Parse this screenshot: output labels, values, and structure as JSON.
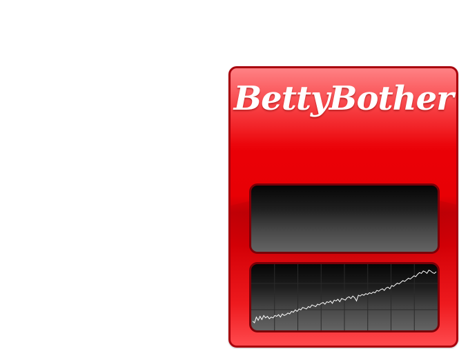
{
  "widget": {
    "logo_text": "BettyBother",
    "colors": {
      "body": "#e80005",
      "border": "#a8000c",
      "panel_dark": "#050505",
      "panel_light": "#646464",
      "line": "#ffffff"
    }
  },
  "display": {
    "text": ""
  },
  "chart_data": {
    "type": "line",
    "title": "",
    "xlabel": "",
    "ylabel": "",
    "grid": true,
    "x": [
      0,
      1,
      2,
      3,
      4,
      5,
      6,
      7,
      8,
      9,
      10,
      11,
      12,
      13,
      14,
      15,
      16,
      17,
      18,
      19,
      20,
      21,
      22,
      23,
      24,
      25,
      26,
      27,
      28,
      29,
      30,
      31,
      32,
      33,
      34,
      35,
      36,
      37,
      38,
      39,
      40,
      41,
      42,
      43,
      44,
      45,
      46,
      47,
      48,
      49,
      50,
      51,
      52,
      53,
      54,
      55,
      56,
      57,
      58,
      59,
      60,
      61,
      62,
      63,
      64,
      65,
      66,
      67,
      68,
      69,
      70,
      71,
      72,
      73,
      74,
      75,
      76,
      77,
      78,
      79,
      80,
      81,
      82,
      83,
      84,
      85,
      86,
      87,
      88,
      89,
      90,
      91,
      92,
      93,
      94,
      95,
      96,
      97,
      98,
      99
    ],
    "series": [
      {
        "values": [
          8,
          6,
          13,
          9,
          14,
          10,
          15,
          12,
          14,
          11,
          13,
          12,
          15,
          14,
          16,
          13,
          17,
          15,
          16,
          18,
          17,
          20,
          19,
          22,
          20,
          23,
          22,
          25,
          24,
          23,
          26,
          25,
          28,
          27,
          26,
          29,
          28,
          30,
          31,
          29,
          32,
          31,
          33,
          30,
          34,
          33,
          35,
          32,
          36,
          35,
          34,
          37,
          38,
          36,
          39,
          37,
          33,
          40,
          39,
          41,
          40,
          42,
          41,
          43,
          42,
          44,
          43,
          46,
          45,
          47,
          48,
          46,
          49,
          50,
          48,
          52,
          51,
          53,
          55,
          54,
          56,
          58,
          57,
          59,
          61,
          60,
          62,
          64,
          63,
          66,
          68,
          67,
          70,
          69,
          67,
          71,
          70,
          68,
          67,
          69
        ]
      }
    ]
  }
}
